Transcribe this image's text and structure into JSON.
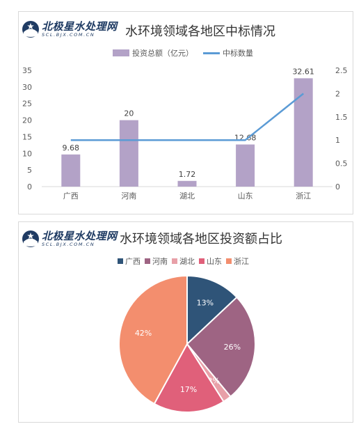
{
  "brand": {
    "name": "北极星水处理网",
    "url": "SCL.BJX.COM.CN"
  },
  "charts": [
    {
      "title": "水环境领域各地区中标情况"
    },
    {
      "title": "水环境领域各地区投资额占比"
    }
  ],
  "colors": {
    "bar": "#b3a2c7",
    "line": "#5b9bd5",
    "pie": [
      "#2f5478",
      "#9e6483",
      "#e8a0a8",
      "#e0607a",
      "#f38e6e"
    ]
  },
  "chart_data": [
    {
      "type": "bar",
      "title": "水环境领域各地区中标情况",
      "categories": [
        "广西",
        "河南",
        "湖北",
        "山东",
        "浙江"
      ],
      "series": [
        {
          "name": "投资总额（亿元）",
          "type": "bar",
          "axis": "left",
          "values": [
            9.68,
            20,
            1.72,
            12.68,
            32.61
          ],
          "data_labels": [
            "9.68",
            "20",
            "1.72",
            "12.68",
            "32.61"
          ]
        },
        {
          "name": "中标数量",
          "type": "line",
          "axis": "right",
          "values": [
            1,
            1,
            1,
            1,
            2
          ]
        }
      ],
      "y_left": {
        "ylim": [
          0,
          35
        ],
        "ticks": [
          "0",
          "5",
          "10",
          "15",
          "20",
          "25",
          "30",
          "35"
        ]
      },
      "y_right": {
        "ylim": [
          0,
          2.5
        ],
        "ticks": [
          "0",
          "0.5",
          "1",
          "1.5",
          "2",
          "2.5"
        ]
      },
      "legend": "top",
      "grid": false
    },
    {
      "type": "pie",
      "title": "水环境领域各地区投资额占比",
      "categories": [
        "广西",
        "河南",
        "湖北",
        "山东",
        "浙江"
      ],
      "values": [
        13,
        26,
        2,
        17,
        42
      ],
      "labels": [
        "13%",
        "26%",
        "2%",
        "17%",
        "42%"
      ],
      "legend": "top"
    }
  ]
}
